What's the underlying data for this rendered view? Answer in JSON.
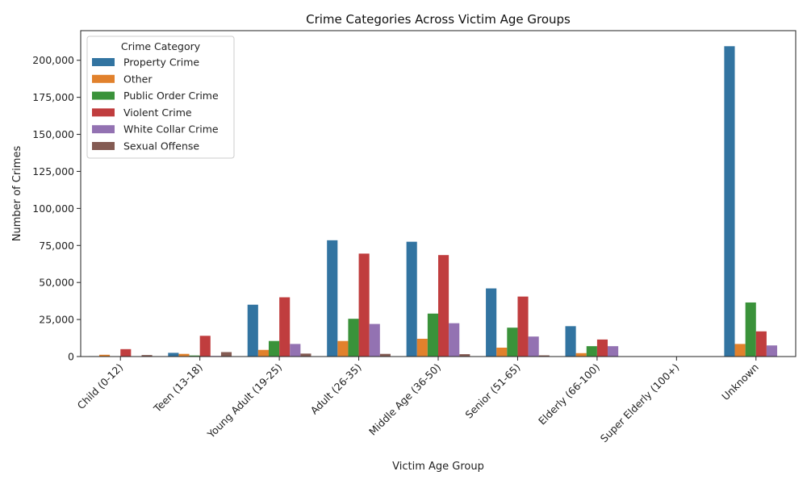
{
  "chart_data": {
    "type": "bar",
    "title": "Crime Categories Across Victim Age Groups",
    "xlabel": "Victim Age Group",
    "ylabel": "Number of Crimes",
    "ylim": [
      0,
      220000
    ],
    "yticks": [
      0,
      25000,
      50000,
      75000,
      100000,
      125000,
      150000,
      175000,
      200000
    ],
    "ytick_labels": [
      "0",
      "25,000",
      "50,000",
      "75,000",
      "100,000",
      "125,000",
      "150,000",
      "175,000",
      "200,000"
    ],
    "categories": [
      "Child (0-12)",
      "Teen (13-18)",
      "Young Adult (19-25)",
      "Adult (26-35)",
      "Middle Age (36-50)",
      "Senior (51-65)",
      "Elderly (66-100)",
      "Super Elderly (100+)",
      "Unknown"
    ],
    "legend_title": "Crime Category",
    "legend_position": "top-left",
    "series": [
      {
        "name": "Property Crime",
        "color": "#3274a1",
        "values": [
          300,
          2500,
          35000,
          78500,
          77500,
          46000,
          20500,
          50,
          209500
        ]
      },
      {
        "name": "Other",
        "color": "#e1812c",
        "values": [
          1200,
          1800,
          4500,
          10500,
          12000,
          6000,
          2300,
          10,
          8500
        ]
      },
      {
        "name": "Public Order Crime",
        "color": "#3a923a",
        "values": [
          200,
          700,
          10500,
          25500,
          29000,
          19500,
          7000,
          10,
          36500
        ]
      },
      {
        "name": "Violent Crime",
        "color": "#c03d3e",
        "values": [
          5000,
          14000,
          40000,
          69500,
          68500,
          40500,
          11500,
          20,
          17000
        ]
      },
      {
        "name": "White Collar Crime",
        "color": "#9372b2",
        "values": [
          200,
          400,
          8500,
          22000,
          22500,
          13500,
          7000,
          10,
          7500
        ]
      },
      {
        "name": "Sexual Offense",
        "color": "#845b53",
        "values": [
          1000,
          3000,
          2000,
          1800,
          1600,
          800,
          100,
          0,
          200
        ]
      }
    ]
  }
}
